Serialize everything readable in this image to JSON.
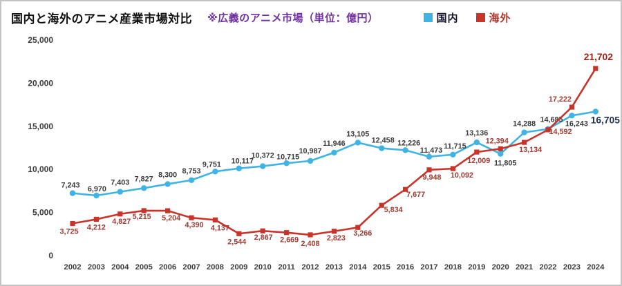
{
  "header": {
    "title": "国内と海外のアニメ産業市場対比",
    "subtitle": "※広義のアニメ市場（単位：億円）"
  },
  "colors": {
    "subtitle_accent": "#7030a0",
    "domestic_line": "#3fb4e4",
    "overseas_line": "#c9342a",
    "frame_border": "#c4c4c4"
  },
  "chart_data": {
    "type": "line",
    "title": "国内と海外のアニメ産業市場対比",
    "subtitle": "※広義のアニメ市場（単位：億円）",
    "unit": "億円",
    "grid": false,
    "legend_position": "top-right",
    "ylim": [
      0,
      25000
    ],
    "y_ticks": [
      0,
      5000,
      10000,
      15000,
      20000,
      25000
    ],
    "categories": [
      2002,
      2003,
      2004,
      2005,
      2006,
      2007,
      2008,
      2009,
      2010,
      2011,
      2012,
      2013,
      2014,
      2015,
      2016,
      2017,
      2018,
      2019,
      2020,
      2021,
      2022,
      2023,
      2024
    ],
    "series": [
      {
        "key": "domestic",
        "name": "国内",
        "color": "#3fb4e4",
        "label_color": "#3a3a3a",
        "end_label_color": "#1f3050",
        "marker": "circle",
        "values": [
          7243,
          6970,
          7403,
          7827,
          8300,
          8753,
          9751,
          10117,
          10372,
          10715,
          10987,
          11946,
          13105,
          12458,
          12226,
          11473,
          11715,
          13136,
          11805,
          14288,
          14685,
          16243,
          16705
        ],
        "label_offsets": [
          [
            -3,
            -8
          ],
          [
            1,
            -6
          ],
          [
            0,
            -10
          ],
          [
            0,
            -10
          ],
          [
            0,
            -10
          ],
          [
            0,
            -10
          ],
          [
            -5,
            -7
          ],
          [
            5,
            -7
          ],
          [
            0,
            -12
          ],
          [
            2,
            -6
          ],
          [
            0,
            -11
          ],
          [
            0,
            -10
          ],
          [
            0,
            -9
          ],
          [
            2,
            -8
          ],
          [
            5,
            -7
          ],
          [
            3,
            -6
          ],
          [
            3,
            -9
          ],
          [
            0,
            -10
          ],
          [
            7,
            17
          ],
          [
            0,
            -9
          ],
          [
            5,
            -10
          ],
          [
            7,
            15
          ],
          [
            14,
            17
          ]
        ]
      },
      {
        "key": "overseas",
        "name": "海外",
        "color": "#c9342a",
        "label_color": "#9e3a30",
        "end_label_color": "#a11f13",
        "marker": "square",
        "values": [
          3725,
          4212,
          4827,
          5215,
          5204,
          4390,
          4137,
          2544,
          2867,
          2669,
          2408,
          2823,
          3266,
          5834,
          7677,
          9948,
          10092,
          12009,
          12394,
          13134,
          14592,
          17222,
          21702
        ],
        "label_offsets": [
          [
            -5,
            15
          ],
          [
            0,
            15
          ],
          [
            2,
            14
          ],
          [
            -3,
            12
          ],
          [
            5,
            14
          ],
          [
            4,
            14
          ],
          [
            7,
            15
          ],
          [
            -3,
            15
          ],
          [
            1,
            13
          ],
          [
            4,
            14
          ],
          [
            0,
            16
          ],
          [
            3,
            13
          ],
          [
            7,
            12
          ],
          [
            17,
            10
          ],
          [
            15,
            11
          ],
          [
            4,
            14
          ],
          [
            13,
            13
          ],
          [
            3,
            16
          ],
          [
            -5,
            -8
          ],
          [
            9,
            14
          ],
          [
            18,
            6
          ],
          [
            -17,
            -8
          ],
          [
            4,
            -12
          ]
        ]
      }
    ]
  }
}
